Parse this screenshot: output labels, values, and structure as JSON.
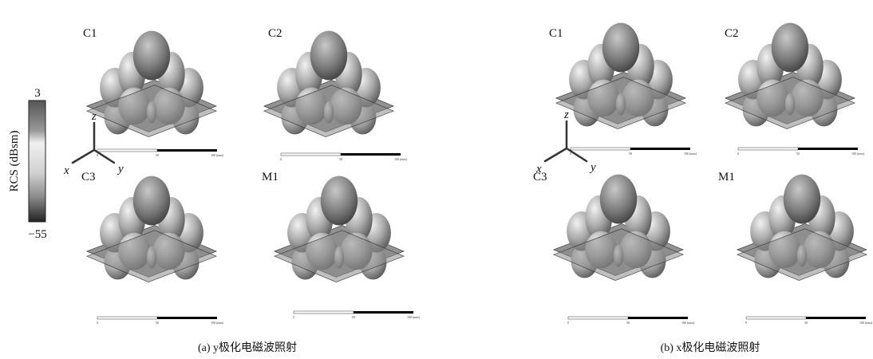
{
  "colorbar": {
    "label": "RCS (dBsm)",
    "max": "3",
    "min": "−55"
  },
  "axes": {
    "x": "x",
    "y": "y",
    "z": "z"
  },
  "scale_bar": {
    "labels": [
      "0",
      "50",
      "100 (mm)"
    ]
  },
  "panels": [
    {
      "caption": "(a) y极化电磁波照射",
      "labels": [
        "C1",
        "C2",
        "C3",
        "M1"
      ]
    },
    {
      "caption": "(b) x极化电磁波照射",
      "labels": [
        "C1",
        "C2",
        "C3",
        "M1"
      ]
    }
  ]
}
